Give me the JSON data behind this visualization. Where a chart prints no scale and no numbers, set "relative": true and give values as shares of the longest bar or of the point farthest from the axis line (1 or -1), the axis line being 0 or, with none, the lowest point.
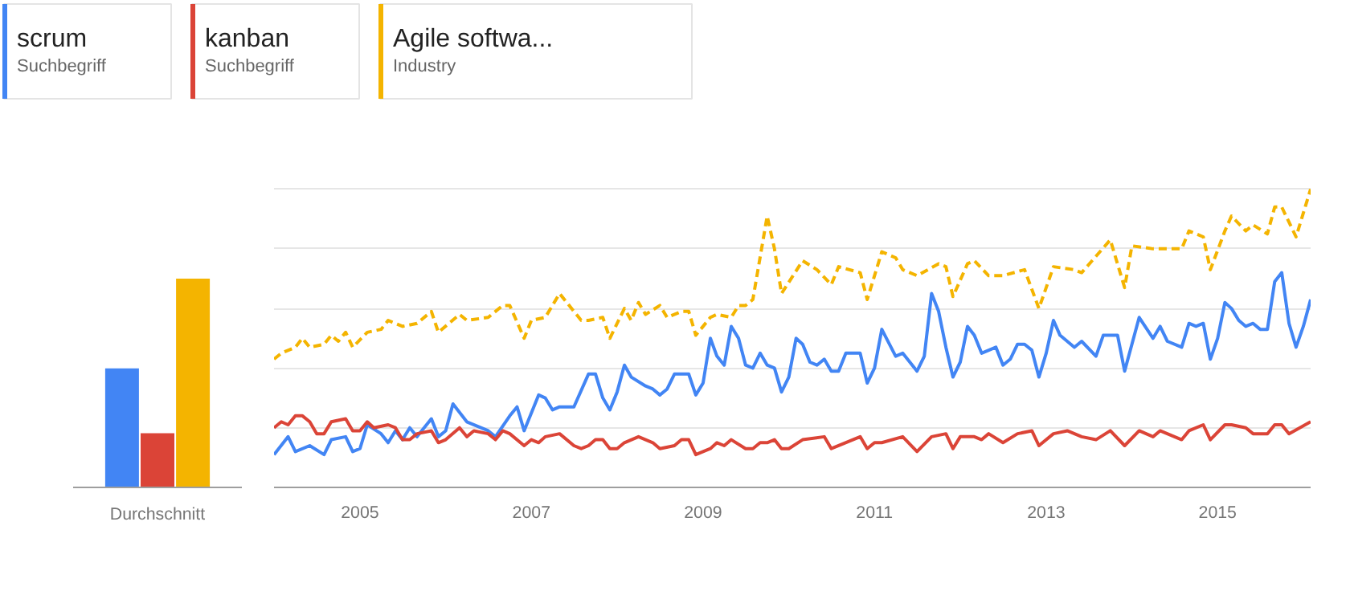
{
  "chart_data": [
    {
      "type": "bar",
      "relative": true,
      "categories": [
        "Durchschnitt"
      ],
      "grid": false,
      "series": [
        {
          "color": "#4285f4",
          "values": [
            0.57
          ]
        },
        {
          "color": "#db4437",
          "values": [
            0.26
          ]
        },
        {
          "color": "#f4b400",
          "values": [
            1
          ]
        }
      ]
    },
    {
      "type": "line",
      "relative": true,
      "xlim": [
        "2004-01",
        "2016-02"
      ],
      "xticks": [
        "2005",
        "2007",
        "2009",
        "2011",
        "2013",
        "2015"
      ],
      "grid": "y",
      "legend": "top left",
      "annotations": [
        "Suchbegriff",
        "Suchbegriff",
        "Industry"
      ],
      "series": [
        {
          "name": "scrum",
          "color": "#4285f4",
          "line_style": "solid",
          "x": [
            "2004-01",
            "2004-03",
            "2004-04",
            "2004-06",
            "2004-08",
            "2004-09",
            "2004-11",
            "2004-12",
            "2005-01",
            "2005-02",
            "2005-04",
            "2005-05",
            "2005-06",
            "2005-07",
            "2005-08",
            "2005-09",
            "2005-11",
            "2005-12",
            "2006-01",
            "2006-02",
            "2006-04",
            "2006-07",
            "2006-08",
            "2006-10",
            "2006-11",
            "2006-12",
            "2007-02",
            "2007-03",
            "2007-04",
            "2007-05",
            "2007-07",
            "2007-09",
            "2007-10",
            "2007-11",
            "2007-12",
            "2008-01",
            "2008-02",
            "2008-03",
            "2008-05",
            "2008-06",
            "2008-07",
            "2008-08",
            "2008-09",
            "2008-11",
            "2008-12",
            "2009-01",
            "2009-02",
            "2009-03",
            "2009-04",
            "2009-05",
            "2009-06",
            "2009-07",
            "2009-08",
            "2009-09",
            "2009-10",
            "2009-11",
            "2009-12",
            "2010-01",
            "2010-02",
            "2010-03",
            "2010-04",
            "2010-05",
            "2010-06",
            "2010-07",
            "2010-08",
            "2010-09",
            "2010-11",
            "2010-12",
            "2011-01",
            "2011-02",
            "2011-04",
            "2011-05",
            "2011-07",
            "2011-08",
            "2011-09",
            "2011-10",
            "2011-11",
            "2011-12",
            "2012-01",
            "2012-02",
            "2012-03",
            "2012-04",
            "2012-06",
            "2012-07",
            "2012-08",
            "2012-09",
            "2012-10",
            "2012-11",
            "2012-12",
            "2013-01",
            "2013-02",
            "2013-03",
            "2013-05",
            "2013-06",
            "2013-08",
            "2013-09",
            "2013-11",
            "2013-12",
            "2014-01",
            "2014-02",
            "2014-04",
            "2014-05",
            "2014-06",
            "2014-08",
            "2014-09",
            "2014-10",
            "2014-11",
            "2014-12",
            "2015-01",
            "2015-02",
            "2015-03",
            "2015-04",
            "2015-05",
            "2015-06",
            "2015-07",
            "2015-08",
            "2015-09",
            "2015-10",
            "2015-11",
            "2015-12",
            "2016-01",
            "2016-02"
          ],
          "values": [
            0.11,
            0.17,
            0.12,
            0.14,
            0.11,
            0.16,
            0.17,
            0.12,
            0.13,
            0.21,
            0.18,
            0.15,
            0.19,
            0.16,
            0.2,
            0.17,
            0.23,
            0.17,
            0.19,
            0.28,
            0.22,
            0.19,
            0.17,
            0.24,
            0.27,
            0.19,
            0.31,
            0.3,
            0.26,
            0.27,
            0.27,
            0.38,
            0.38,
            0.3,
            0.26,
            0.32,
            0.41,
            0.37,
            0.34,
            0.33,
            0.31,
            0.33,
            0.38,
            0.38,
            0.31,
            0.35,
            0.5,
            0.44,
            0.41,
            0.54,
            0.5,
            0.41,
            0.4,
            0.45,
            0.41,
            0.4,
            0.32,
            0.37,
            0.5,
            0.48,
            0.42,
            0.41,
            0.43,
            0.39,
            0.39,
            0.45,
            0.45,
            0.35,
            0.4,
            0.53,
            0.44,
            0.45,
            0.39,
            0.44,
            0.65,
            0.59,
            0.47,
            0.37,
            0.42,
            0.54,
            0.51,
            0.45,
            0.47,
            0.41,
            0.43,
            0.48,
            0.48,
            0.46,
            0.37,
            0.45,
            0.56,
            0.51,
            0.47,
            0.49,
            0.44,
            0.51,
            0.51,
            0.39,
            0.48,
            0.57,
            0.5,
            0.54,
            0.49,
            0.47,
            0.55,
            0.54,
            0.55,
            0.43,
            0.5,
            0.62,
            0.6,
            0.56,
            0.54,
            0.55,
            0.53,
            0.53,
            0.69,
            0.72,
            0.55,
            0.47,
            0.54,
            0.63
          ]
        },
        {
          "name": "kanban",
          "color": "#db4437",
          "line_style": "solid",
          "x": [
            "2004-01",
            "2004-02",
            "2004-03",
            "2004-04",
            "2004-05",
            "2004-06",
            "2004-07",
            "2004-08",
            "2004-09",
            "2004-11",
            "2004-12",
            "2005-01",
            "2005-02",
            "2005-03",
            "2005-05",
            "2005-06",
            "2005-07",
            "2005-08",
            "2005-09",
            "2005-11",
            "2005-12",
            "2006-01",
            "2006-03",
            "2006-04",
            "2006-05",
            "2006-07",
            "2006-08",
            "2006-09",
            "2006-10",
            "2006-12",
            "2007-01",
            "2007-02",
            "2007-03",
            "2007-05",
            "2007-07",
            "2007-08",
            "2007-09",
            "2007-10",
            "2007-11",
            "2007-12",
            "2008-01",
            "2008-02",
            "2008-04",
            "2008-06",
            "2008-07",
            "2008-09",
            "2008-10",
            "2008-11",
            "2008-12",
            "2009-02",
            "2009-03",
            "2009-04",
            "2009-05",
            "2009-07",
            "2009-08",
            "2009-09",
            "2009-10",
            "2009-11",
            "2009-12",
            "2010-01",
            "2010-03",
            "2010-06",
            "2010-07",
            "2010-11",
            "2010-12",
            "2011-01",
            "2011-02",
            "2011-05",
            "2011-07",
            "2011-09",
            "2011-11",
            "2011-12",
            "2012-01",
            "2012-03",
            "2012-04",
            "2012-05",
            "2012-07",
            "2012-09",
            "2012-11",
            "2012-12",
            "2013-02",
            "2013-04",
            "2013-06",
            "2013-08",
            "2013-10",
            "2013-12",
            "2014-02",
            "2014-04",
            "2014-05",
            "2014-08",
            "2014-09",
            "2014-11",
            "2014-12",
            "2015-02",
            "2015-03",
            "2015-05",
            "2015-06",
            "2015-08",
            "2015-09",
            "2015-10",
            "2015-11",
            "2016-02"
          ],
          "values": [
            0.2,
            0.22,
            0.21,
            0.24,
            0.24,
            0.22,
            0.18,
            0.18,
            0.22,
            0.23,
            0.19,
            0.19,
            0.22,
            0.2,
            0.21,
            0.2,
            0.16,
            0.16,
            0.18,
            0.19,
            0.15,
            0.16,
            0.2,
            0.17,
            0.19,
            0.18,
            0.16,
            0.19,
            0.18,
            0.14,
            0.16,
            0.15,
            0.17,
            0.18,
            0.14,
            0.13,
            0.14,
            0.16,
            0.16,
            0.13,
            0.13,
            0.15,
            0.17,
            0.15,
            0.13,
            0.14,
            0.16,
            0.16,
            0.11,
            0.13,
            0.15,
            0.14,
            0.16,
            0.13,
            0.13,
            0.15,
            0.15,
            0.16,
            0.13,
            0.13,
            0.16,
            0.17,
            0.13,
            0.17,
            0.13,
            0.15,
            0.15,
            0.17,
            0.12,
            0.17,
            0.18,
            0.13,
            0.17,
            0.17,
            0.16,
            0.18,
            0.15,
            0.18,
            0.19,
            0.14,
            0.18,
            0.19,
            0.17,
            0.16,
            0.19,
            0.14,
            0.19,
            0.17,
            0.19,
            0.16,
            0.19,
            0.21,
            0.16,
            0.21,
            0.21,
            0.2,
            0.18,
            0.18,
            0.21,
            0.21,
            0.18,
            0.22
          ]
        },
        {
          "name": "Agile softwa...",
          "color": "#f4b400",
          "line_style": "dashed",
          "x": [
            "2004-01",
            "2004-02",
            "2004-04",
            "2004-05",
            "2004-06",
            "2004-08",
            "2004-09",
            "2004-10",
            "2004-11",
            "2004-12",
            "2005-02",
            "2005-04",
            "2005-05",
            "2005-07",
            "2005-09",
            "2005-11",
            "2005-12",
            "2006-03",
            "2006-04",
            "2006-07",
            "2006-09",
            "2006-10",
            "2006-12",
            "2007-01",
            "2007-03",
            "2007-05",
            "2007-08",
            "2007-09",
            "2007-11",
            "2007-12",
            "2008-02",
            "2008-03",
            "2008-04",
            "2008-05",
            "2008-07",
            "2008-08",
            "2008-10",
            "2008-11",
            "2008-12",
            "2009-02",
            "2009-03",
            "2009-05",
            "2009-06",
            "2009-07",
            "2009-08",
            "2009-10",
            "2009-11",
            "2009-12",
            "2010-03",
            "2010-05",
            "2010-07",
            "2010-08",
            "2010-11",
            "2010-12",
            "2011-02",
            "2011-04",
            "2011-05",
            "2011-07",
            "2011-10",
            "2011-11",
            "2011-12",
            "2012-02",
            "2012-03",
            "2012-05",
            "2012-07",
            "2012-10",
            "2012-12",
            "2013-02",
            "2013-05",
            "2013-06",
            "2013-10",
            "2013-12",
            "2014-01",
            "2014-04",
            "2014-08",
            "2014-09",
            "2014-11",
            "2014-12",
            "2015-02",
            "2015-03",
            "2015-05",
            "2015-06",
            "2015-08",
            "2015-09",
            "2015-10",
            "2015-12",
            "2016-02"
          ],
          "values": [
            0.43,
            0.45,
            0.47,
            0.5,
            0.47,
            0.48,
            0.51,
            0.49,
            0.52,
            0.47,
            0.52,
            0.53,
            0.56,
            0.54,
            0.55,
            0.59,
            0.52,
            0.58,
            0.56,
            0.57,
            0.61,
            0.61,
            0.5,
            0.56,
            0.57,
            0.65,
            0.56,
            0.56,
            0.57,
            0.5,
            0.6,
            0.56,
            0.62,
            0.58,
            0.61,
            0.57,
            0.59,
            0.59,
            0.51,
            0.57,
            0.58,
            0.57,
            0.61,
            0.61,
            0.63,
            0.91,
            0.8,
            0.65,
            0.76,
            0.73,
            0.68,
            0.74,
            0.72,
            0.63,
            0.79,
            0.77,
            0.73,
            0.71,
            0.75,
            0.74,
            0.64,
            0.75,
            0.76,
            0.71,
            0.71,
            0.73,
            0.6,
            0.74,
            0.73,
            0.72,
            0.83,
            0.67,
            0.81,
            0.8,
            0.8,
            0.86,
            0.84,
            0.73,
            0.86,
            0.91,
            0.86,
            0.88,
            0.85,
            0.94,
            0.94,
            0.84,
            1
          ]
        }
      ]
    }
  ]
}
